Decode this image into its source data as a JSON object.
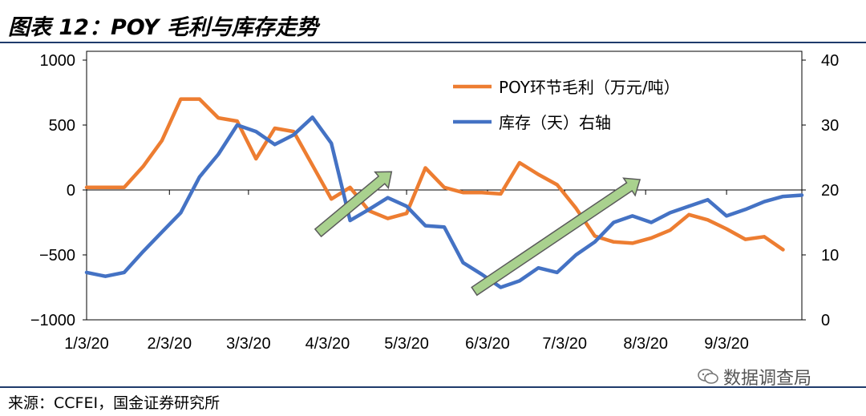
{
  "title": "图表 12：POY 毛利与库存走势",
  "source": "来源：CCFEI，国金证券研究所",
  "watermark": "数据调查局",
  "watermark_icon": "wechat-icon",
  "chart_data": {
    "type": "line",
    "left_axis": {
      "range": [
        -1000,
        1000
      ],
      "ticks": [
        1000,
        500,
        0,
        -500,
        -1000
      ]
    },
    "right_axis": {
      "range": [
        0,
        40
      ],
      "ticks": [
        40,
        30,
        20,
        10,
        0
      ]
    },
    "x_tick_labels": [
      "1/3/20",
      "2/3/20",
      "3/3/20",
      "4/3/20",
      "5/3/20",
      "6/3/20",
      "7/3/20",
      "8/3/20",
      "9/3/20"
    ],
    "x_tick_weeks": [
      0,
      4.4,
      8.6,
      12.8,
      17,
      21.3,
      25.4,
      29.7,
      34
    ],
    "colors": {
      "margin": "#ed7d31",
      "inventory": "#4472c4",
      "arrow_fill": "#a9d18e",
      "arrow_stroke": "#5a5a5a"
    },
    "series": [
      {
        "name": "POY环节毛利（万元/吨）",
        "axis": "left",
        "week": [
          0,
          1,
          2,
          3,
          4,
          5,
          6,
          7,
          8,
          9,
          10,
          11,
          12,
          13,
          14,
          15,
          16,
          17,
          18,
          19,
          20,
          21,
          22,
          23,
          24,
          25,
          26,
          27,
          28,
          29,
          30,
          31,
          32,
          33,
          34,
          35,
          36,
          37
        ],
        "values": [
          20,
          20,
          20,
          180,
          380,
          700,
          700,
          555,
          530,
          240,
          475,
          450,
          190,
          -70,
          20,
          -160,
          -220,
          -180,
          170,
          20,
          -20,
          -20,
          -30,
          210,
          120,
          40,
          -140,
          -355,
          -400,
          -410,
          -370,
          -310,
          -190,
          -230,
          -300,
          -380,
          -360,
          -460
        ]
      },
      {
        "name": "库存（天）右轴",
        "axis": "right",
        "week": [
          0,
          1,
          2,
          3,
          4,
          5,
          6,
          7,
          8,
          9,
          10,
          11,
          12,
          13,
          14,
          15,
          16,
          17,
          18,
          19,
          20,
          21,
          22,
          23,
          24,
          25,
          26,
          27,
          28,
          29,
          30,
          31,
          32,
          33,
          34,
          35,
          36,
          37,
          38
        ],
        "values": [
          7.3,
          6.7,
          7.3,
          10.5,
          13.5,
          16.5,
          22,
          25.5,
          30,
          29,
          27,
          28.5,
          31.2,
          27.2,
          15.3,
          17,
          18.8,
          17.5,
          14.5,
          14.3,
          8.8,
          7,
          5,
          6,
          8,
          7.3,
          10,
          12,
          15,
          16,
          15,
          16.5,
          17.5,
          18.5,
          16,
          17,
          18.2,
          19,
          19.2
        ]
      }
    ],
    "arrows": [
      {
        "from": {
          "week": 12.3,
          "value": -330
        },
        "to": {
          "week": 16.2,
          "value": 140
        }
      },
      {
        "from": {
          "week": 20.6,
          "value": -780
        },
        "to": {
          "week": 29.4,
          "value": 80
        }
      }
    ],
    "legend_position": "top-right",
    "grid": false
  }
}
